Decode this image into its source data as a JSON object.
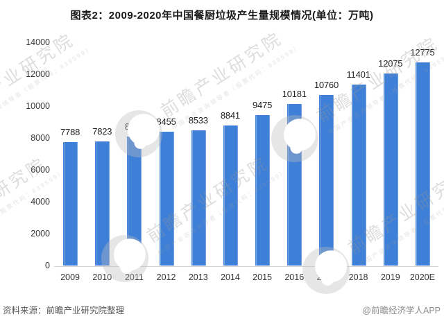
{
  "title": "图表2：2009-2020年中国餐厨垃圾产生量规模情况(单位：万吨)",
  "chart_data": {
    "type": "bar",
    "title": "图表2：2009-2020年中国餐厨垃圾产生量规模情况(单位：万吨)",
    "unit": "万吨",
    "categories": [
      "2009",
      "2010",
      "2011",
      "2012",
      "2013",
      "2014",
      "2015",
      "2016",
      "2017",
      "2018",
      "2019",
      "2020E"
    ],
    "values": [
      7788,
      7823,
      8116,
      8455,
      8533,
      8841,
      9475,
      10181,
      10760,
      11401,
      12075,
      12775
    ],
    "ylim": [
      0,
      14000
    ],
    "ytick_step": 2000,
    "yticks": [
      0,
      2000,
      4000,
      6000,
      8000,
      10000,
      12000,
      14000
    ],
    "xlabel": "",
    "ylabel": "",
    "grid": false,
    "legend": "none",
    "value_labels": true,
    "bar_color": "#3e7fd8",
    "bar_edge_color": "#78a4e2",
    "axis_line_color": "#d4d4d4"
  },
  "footer": {
    "source": "资料来源：前瞻产业研究院整理",
    "credit": "@前瞻经济学人APP"
  },
  "watermark": {
    "icon": "qianzhan-logo-icon",
    "text": "前瞻产业研究院",
    "subtext": "中国产业咨询领导者（股票代码：839599）"
  }
}
